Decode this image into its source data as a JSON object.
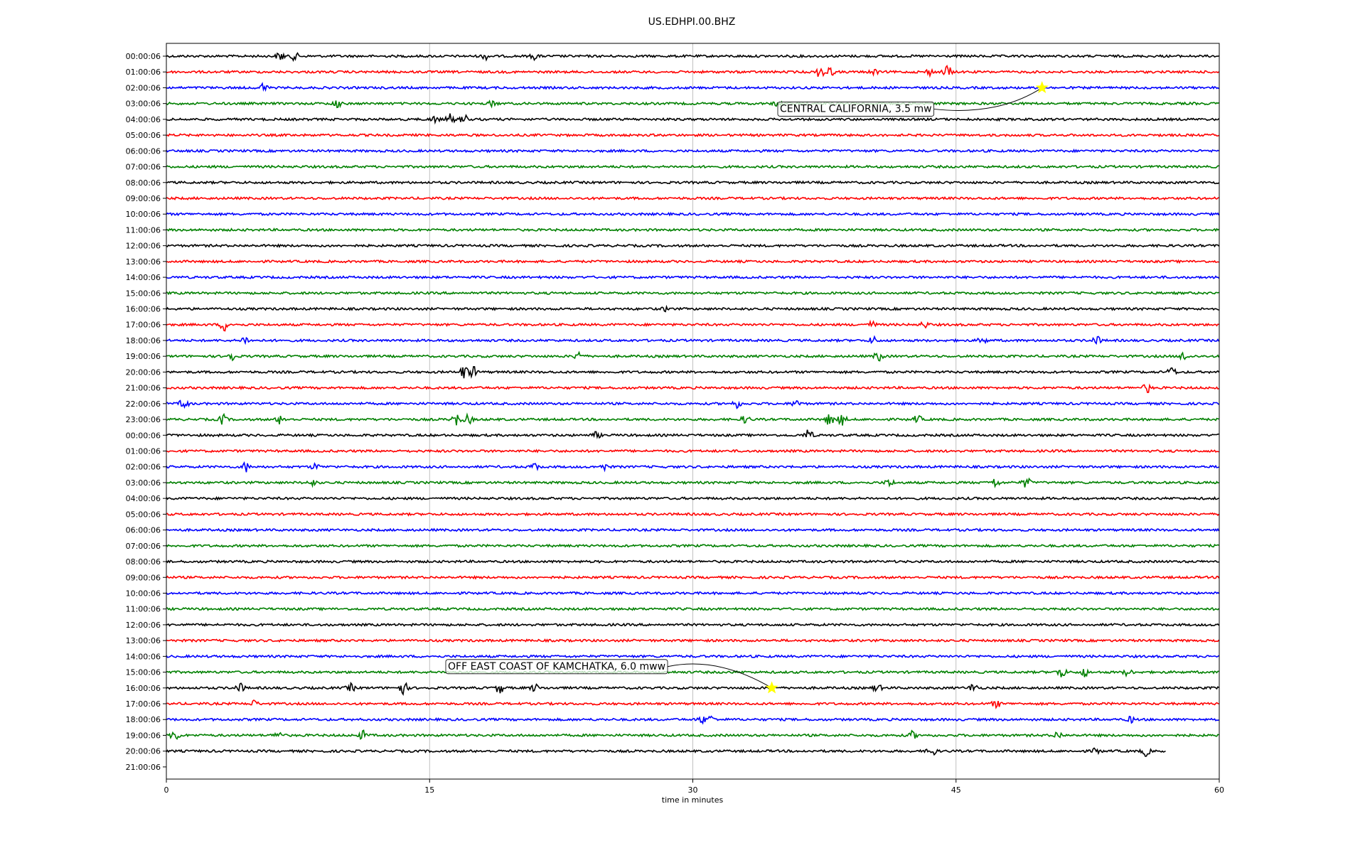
{
  "chart_data": {
    "type": "line",
    "title": "US.EDHPI.00.BHZ",
    "xlabel": "time in minutes",
    "ylabel": "",
    "xlim": [
      0,
      60
    ],
    "x_ticks": [
      "0",
      "15",
      "30",
      "45",
      "60"
    ],
    "grid": "vertical at x ticks",
    "color_cycle": [
      "#000000",
      "#ff0000",
      "#0000ff",
      "#008000"
    ],
    "row_labels": [
      "00:00:06",
      "01:00:06",
      "02:00:06",
      "03:00:06",
      "04:00:06",
      "05:00:06",
      "06:00:06",
      "07:00:06",
      "08:00:06",
      "09:00:06",
      "10:00:06",
      "11:00:06",
      "12:00:06",
      "13:00:06",
      "14:00:06",
      "15:00:06",
      "16:00:06",
      "17:00:06",
      "18:00:06",
      "19:00:06",
      "20:00:06",
      "21:00:06",
      "22:00:06",
      "23:00:06",
      "00:00:06",
      "01:00:06",
      "02:00:06",
      "03:00:06",
      "04:00:06",
      "05:00:06",
      "06:00:06",
      "07:00:06",
      "08:00:06",
      "09:00:06",
      "10:00:06",
      "11:00:06",
      "12:00:06",
      "13:00:06",
      "14:00:06",
      "15:00:06",
      "16:00:06",
      "17:00:06",
      "18:00:06",
      "19:00:06",
      "20:00:06",
      "21:00:06"
    ],
    "trace_end_minutes": {
      "44": 57
    },
    "bursts": [
      {
        "row": 0,
        "t": 6.5,
        "a": 0.6
      },
      {
        "row": 0,
        "t": 7.3,
        "a": 0.5
      },
      {
        "row": 0,
        "t": 18.2,
        "a": 0.4
      },
      {
        "row": 0,
        "t": 21.0,
        "a": 0.4
      },
      {
        "row": 1,
        "t": 37.3,
        "a": 0.9
      },
      {
        "row": 1,
        "t": 37.8,
        "a": 0.6
      },
      {
        "row": 1,
        "t": 40.3,
        "a": 0.4
      },
      {
        "row": 1,
        "t": 43.5,
        "a": 0.4
      },
      {
        "row": 1,
        "t": 44.5,
        "a": 0.9
      },
      {
        "row": 2,
        "t": 5.5,
        "a": 0.6
      },
      {
        "row": 3,
        "t": 9.7,
        "a": 0.6
      },
      {
        "row": 3,
        "t": 18.6,
        "a": 0.4
      },
      {
        "row": 3,
        "t": 34.8,
        "a": 0.3
      },
      {
        "row": 4,
        "t": 15.3,
        "a": 0.4
      },
      {
        "row": 4,
        "t": 16.2,
        "a": 0.7
      },
      {
        "row": 4,
        "t": 17.0,
        "a": 0.6
      },
      {
        "row": 16,
        "t": 28.5,
        "a": 0.3
      },
      {
        "row": 17,
        "t": 3.3,
        "a": 0.8
      },
      {
        "row": 17,
        "t": 40.2,
        "a": 0.4
      },
      {
        "row": 17,
        "t": 43.2,
        "a": 0.4
      },
      {
        "row": 18,
        "t": 4.5,
        "a": 0.5
      },
      {
        "row": 18,
        "t": 40.3,
        "a": 0.5
      },
      {
        "row": 18,
        "t": 46.5,
        "a": 0.4
      },
      {
        "row": 18,
        "t": 53.0,
        "a": 0.6
      },
      {
        "row": 19,
        "t": 3.7,
        "a": 0.7
      },
      {
        "row": 19,
        "t": 23.5,
        "a": 0.6
      },
      {
        "row": 19,
        "t": 40.6,
        "a": 0.7
      },
      {
        "row": 19,
        "t": 58.0,
        "a": 0.6
      },
      {
        "row": 20,
        "t": 17.0,
        "a": 1.0
      },
      {
        "row": 20,
        "t": 17.5,
        "a": 0.7
      },
      {
        "row": 20,
        "t": 57.3,
        "a": 0.6
      },
      {
        "row": 21,
        "t": 55.9,
        "a": 0.6
      },
      {
        "row": 22,
        "t": 1.0,
        "a": 0.7
      },
      {
        "row": 22,
        "t": 32.5,
        "a": 0.5
      },
      {
        "row": 22,
        "t": 35.9,
        "a": 0.5
      },
      {
        "row": 23,
        "t": 3.2,
        "a": 0.7
      },
      {
        "row": 23,
        "t": 6.5,
        "a": 0.6
      },
      {
        "row": 23,
        "t": 16.5,
        "a": 0.9
      },
      {
        "row": 23,
        "t": 17.2,
        "a": 0.6
      },
      {
        "row": 23,
        "t": 33.0,
        "a": 0.5
      },
      {
        "row": 23,
        "t": 37.8,
        "a": 0.8
      },
      {
        "row": 23,
        "t": 38.5,
        "a": 0.7
      },
      {
        "row": 23,
        "t": 42.8,
        "a": 0.5
      },
      {
        "row": 24,
        "t": 24.5,
        "a": 0.4
      },
      {
        "row": 24,
        "t": 36.6,
        "a": 0.8
      },
      {
        "row": 26,
        "t": 4.5,
        "a": 0.7
      },
      {
        "row": 26,
        "t": 8.5,
        "a": 0.4
      },
      {
        "row": 26,
        "t": 21.0,
        "a": 0.5
      },
      {
        "row": 26,
        "t": 25.0,
        "a": 0.4
      },
      {
        "row": 27,
        "t": 8.3,
        "a": 0.4
      },
      {
        "row": 27,
        "t": 41.2,
        "a": 0.5
      },
      {
        "row": 27,
        "t": 47.2,
        "a": 0.6
      },
      {
        "row": 27,
        "t": 49.0,
        "a": 0.7
      },
      {
        "row": 39,
        "t": 51.0,
        "a": 0.8
      },
      {
        "row": 39,
        "t": 52.3,
        "a": 0.6
      },
      {
        "row": 39,
        "t": 54.8,
        "a": 0.5
      },
      {
        "row": 40,
        "t": 4.2,
        "a": 0.6
      },
      {
        "row": 40,
        "t": 10.5,
        "a": 0.5
      },
      {
        "row": 40,
        "t": 13.5,
        "a": 0.9
      },
      {
        "row": 40,
        "t": 19.0,
        "a": 0.7
      },
      {
        "row": 40,
        "t": 21.0,
        "a": 0.5
      },
      {
        "row": 40,
        "t": 40.5,
        "a": 0.5
      },
      {
        "row": 40,
        "t": 46.0,
        "a": 0.6
      },
      {
        "row": 41,
        "t": 5.0,
        "a": 0.4
      },
      {
        "row": 41,
        "t": 47.3,
        "a": 0.5
      },
      {
        "row": 42,
        "t": 30.5,
        "a": 0.5
      },
      {
        "row": 42,
        "t": 31.0,
        "a": 0.5
      },
      {
        "row": 42,
        "t": 55.0,
        "a": 0.4
      },
      {
        "row": 43,
        "t": 0.5,
        "a": 0.7
      },
      {
        "row": 43,
        "t": 6.4,
        "a": 0.6
      },
      {
        "row": 43,
        "t": 11.2,
        "a": 0.6
      },
      {
        "row": 43,
        "t": 42.5,
        "a": 0.5
      },
      {
        "row": 43,
        "t": 50.8,
        "a": 0.5
      },
      {
        "row": 44,
        "t": 43.6,
        "a": 0.8
      },
      {
        "row": 44,
        "t": 53.0,
        "a": 0.4
      },
      {
        "row": 44,
        "t": 55.8,
        "a": 0.6
      }
    ],
    "events": [
      {
        "label": "CENTRAL CALIFORNIA, 3.5 mw",
        "row": 2,
        "t": 49.9,
        "marker_color": "#ffff00"
      },
      {
        "label": "OFF EAST COAST OF KAMCHATKA, 6.0 mww",
        "row": 40,
        "t": 34.5,
        "marker_color": "#ffff00"
      }
    ]
  }
}
